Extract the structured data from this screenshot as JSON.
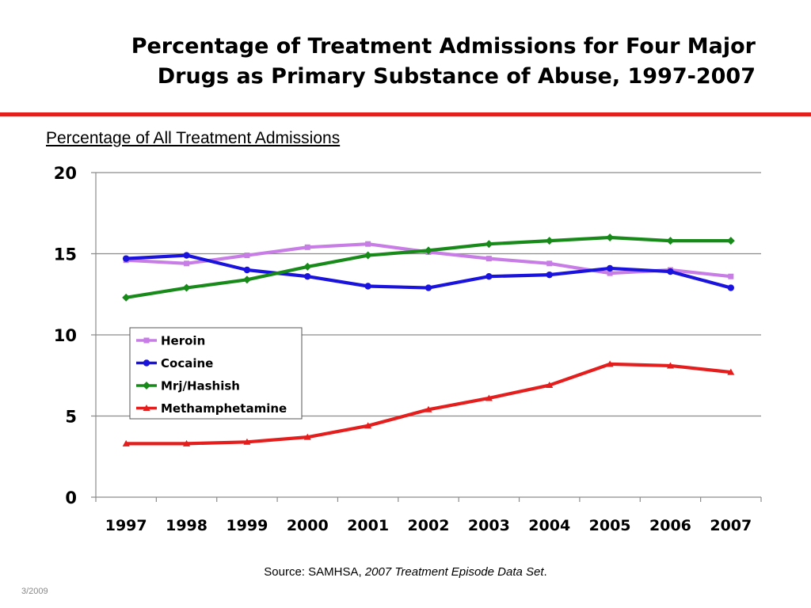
{
  "slide": {
    "title_line1": "Percentage of Treatment Admissions for Four Major",
    "title_line2": "Drugs as Primary Substance of Abuse, 1997-2007",
    "subtitle": "Percentage of All Treatment Admissions",
    "source_prefix": "Source:  SAMHSA, ",
    "source_italic": "2007 Treatment Episode Data Set",
    "source_suffix": ".",
    "date": "3/2009",
    "rule_color": "#e4201c"
  },
  "chart_data": {
    "type": "line",
    "title": "",
    "xlabel": "",
    "ylabel": "",
    "ylim": [
      0,
      20
    ],
    "yticks": [
      0,
      5,
      10,
      15,
      20
    ],
    "grid": true,
    "legend_position": "middle-left",
    "categories": [
      "1997",
      "1998",
      "1999",
      "2000",
      "2001",
      "2002",
      "2003",
      "2004",
      "2005",
      "2006",
      "2007"
    ],
    "series": [
      {
        "name": "Heroin",
        "color": "#c77ce6",
        "marker": "square",
        "values": [
          14.6,
          14.4,
          14.9,
          15.4,
          15.6,
          15.1,
          14.7,
          14.4,
          13.8,
          14.0,
          13.6
        ]
      },
      {
        "name": "Cocaine",
        "color": "#1a12dd",
        "marker": "circle",
        "values": [
          14.7,
          14.9,
          14.0,
          13.6,
          13.0,
          12.9,
          13.6,
          13.7,
          14.1,
          13.9,
          12.9
        ]
      },
      {
        "name": "Mrj/Hashish",
        "color": "#178a1a",
        "marker": "diamond",
        "values": [
          12.3,
          12.9,
          13.4,
          14.2,
          14.9,
          15.2,
          15.6,
          15.8,
          16.0,
          15.8,
          15.8
        ]
      },
      {
        "name": "Methamphetamine",
        "color": "#e41d1d",
        "marker": "triangle",
        "values": [
          3.3,
          3.3,
          3.4,
          3.7,
          4.4,
          5.4,
          6.1,
          6.9,
          8.2,
          8.1,
          7.7
        ]
      }
    ]
  }
}
